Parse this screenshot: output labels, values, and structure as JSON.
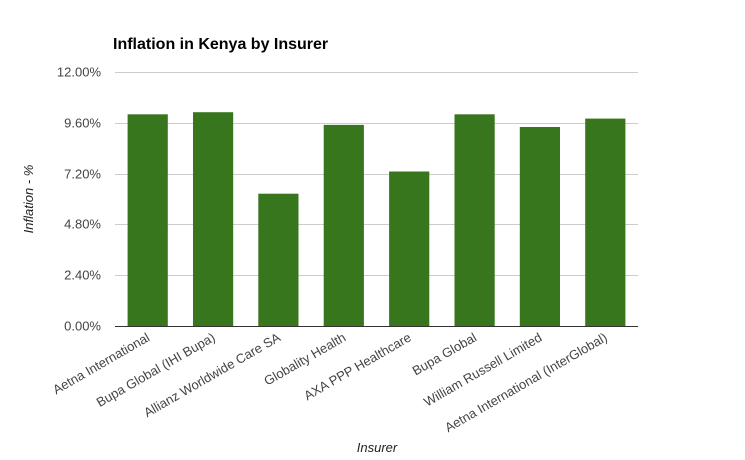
{
  "chart_data": {
    "type": "bar",
    "title": "Inflation in Kenya by Insurer",
    "xlabel": "Insurer",
    "ylabel": "Inflation - %",
    "categories": [
      "Aetna International",
      "Bupa Global (IHI Bupa)",
      "Allianz Worldwide Care SA",
      "Globality Health",
      "AXA PPP Healthcare",
      "Bupa Global",
      "William Russell Limited",
      "Aetna International (InterGlobal)"
    ],
    "values": [
      10.0,
      10.1,
      6.25,
      9.5,
      7.3,
      10.0,
      9.4,
      9.8
    ],
    "ylim": [
      0,
      12
    ],
    "yticks": [
      0,
      2.4,
      4.8,
      7.2,
      9.6,
      12
    ],
    "ytick_labels": [
      "0.00%",
      "2.40%",
      "4.80%",
      "7.20%",
      "9.60%",
      "12.00%"
    ],
    "grid": true,
    "legend": "none",
    "bar_color": "#38761d",
    "grid_color": "#cccccc",
    "axis_color": "#333333"
  }
}
